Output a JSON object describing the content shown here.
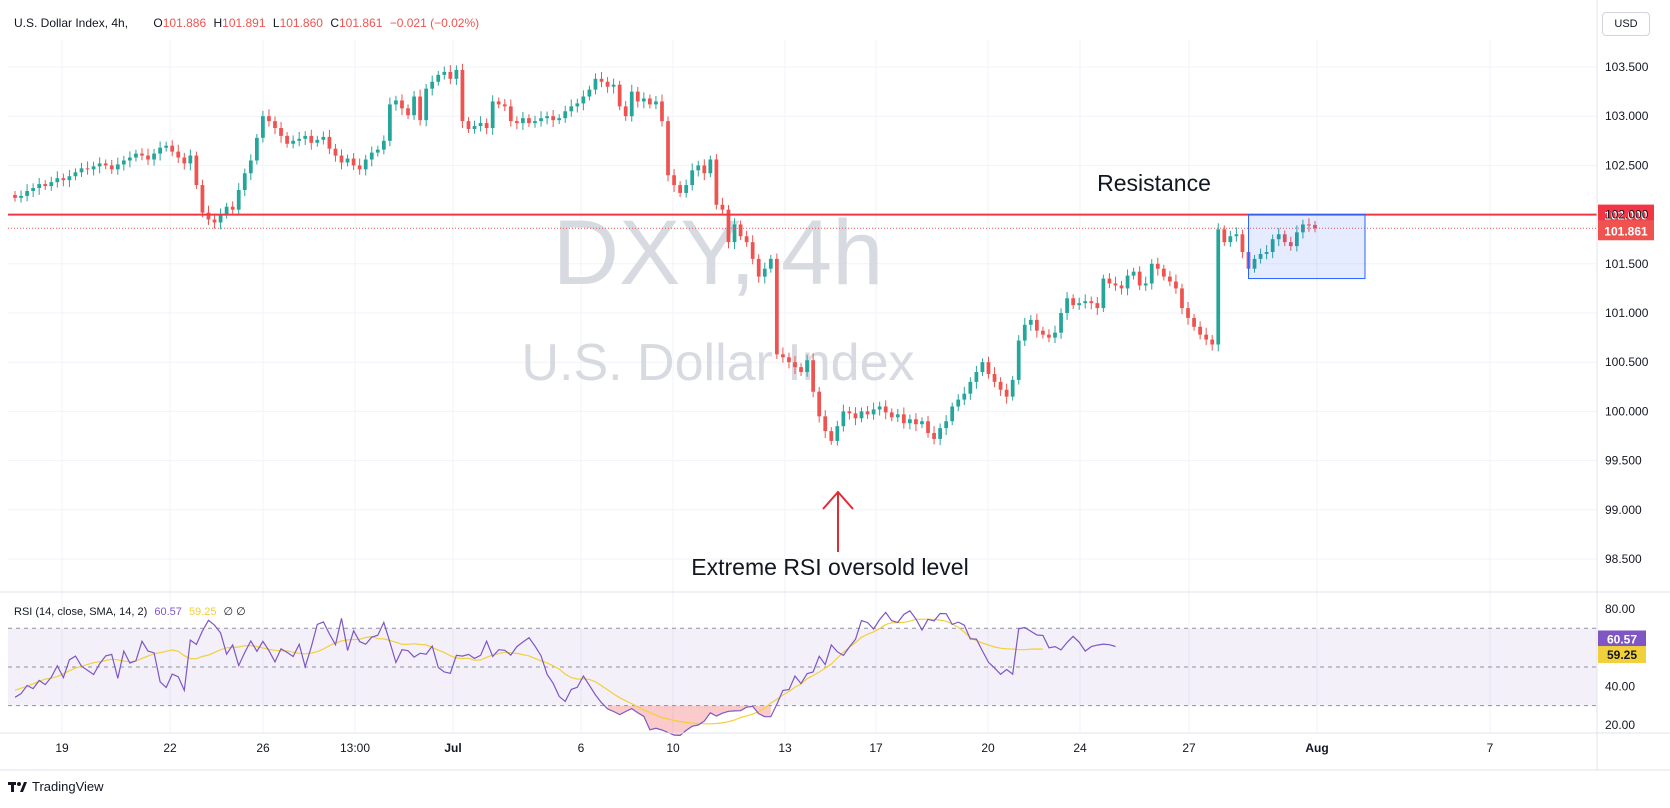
{
  "legend": {
    "title": "U.S. Dollar Index, 4h,",
    "open_label": "O",
    "open": "101.886",
    "high_label": "H",
    "high": "101.891",
    "low_label": "L",
    "low": "101.860",
    "close_label": "C",
    "close": "101.861",
    "change": "−0.021 (−0.02%)"
  },
  "rsi_legend": {
    "label": "RSI (14, close, SMA, 14, 2)",
    "rsi": "60.57",
    "sma": "59.25",
    "extra": "∅ ∅"
  },
  "currency": "USD",
  "watermark": {
    "symbol": "DXY, 4h",
    "name": "U.S. Dollar Index"
  },
  "annotations": {
    "resistance": "Resistance",
    "oversold": "Extreme RSI oversold level"
  },
  "brand": "TradingView",
  "colors": {
    "up": "#26a69a",
    "down": "#ef5350",
    "resistance": "#f23645",
    "rsi_line": "#7e57c2",
    "rsi_sma": "#f2d03b",
    "box_border": "#2962ff"
  },
  "chart_data": [
    {
      "type": "candlestick",
      "price_axis_labels": [
        "103.500",
        "103.000",
        "102.500",
        "102.000",
        "101.500",
        "101.000",
        "100.500",
        "100.000",
        "99.500",
        "99.000",
        "98.500"
      ],
      "price_axis_values": [
        103.5,
        103.0,
        102.5,
        102.0,
        101.5,
        101.0,
        100.5,
        100.0,
        99.5,
        99.0,
        98.5
      ],
      "time_axis_labels": [
        "19",
        "22",
        "26",
        "13:00",
        "Jul",
        "6",
        "10",
        "13",
        "17",
        "20",
        "24",
        "27",
        "Aug",
        "7"
      ],
      "resistance_level": 102.0,
      "resistance_label": "102.000",
      "last_price": 101.861,
      "last_price_label": "101.861",
      "range_box": {
        "price_top": 102.0,
        "price_bottom": 101.35
      },
      "closes": [
        102.17,
        102.19,
        102.24,
        102.27,
        102.31,
        102.29,
        102.33,
        102.37,
        102.35,
        102.39,
        102.43,
        102.47,
        102.46,
        102.49,
        102.52,
        102.5,
        102.46,
        102.51,
        102.55,
        102.58,
        102.62,
        102.6,
        102.56,
        102.62,
        102.68,
        102.7,
        102.64,
        102.58,
        102.52,
        102.6,
        102.3,
        102.02,
        101.95,
        101.92,
        102.0,
        102.08,
        102.05,
        102.25,
        102.42,
        102.55,
        102.78,
        103.0,
        102.95,
        102.88,
        102.8,
        102.72,
        102.75,
        102.77,
        102.8,
        102.73,
        102.76,
        102.79,
        102.67,
        102.6,
        102.53,
        102.57,
        102.5,
        102.46,
        102.56,
        102.63,
        102.66,
        102.75,
        103.12,
        103.16,
        103.08,
        103.01,
        103.2,
        102.96,
        103.28,
        103.35,
        103.42,
        103.45,
        103.38,
        103.47,
        102.95,
        102.87,
        102.9,
        102.93,
        102.88,
        103.15,
        103.12,
        103.1,
        102.95,
        102.93,
        102.98,
        102.93,
        102.95,
        102.98,
        103.0,
        102.96,
        102.98,
        103.05,
        103.1,
        103.13,
        103.2,
        103.27,
        103.38,
        103.35,
        103.3,
        103.32,
        103.1,
        103.0,
        103.25,
        103.15,
        103.18,
        103.12,
        103.15,
        102.95,
        102.4,
        102.3,
        102.22,
        102.3,
        102.45,
        102.5,
        102.42,
        102.56,
        102.1,
        102.05,
        101.72,
        101.9,
        101.78,
        101.72,
        101.55,
        101.37,
        101.45,
        101.55,
        100.58,
        100.55,
        100.5,
        100.45,
        100.4,
        100.52,
        100.2,
        99.95,
        99.8,
        99.7,
        99.85,
        100.0,
        99.98,
        99.93,
        100.0,
        99.97,
        100.02,
        100.05,
        99.99,
        99.94,
        99.97,
        99.88,
        99.92,
        99.87,
        99.9,
        99.78,
        99.72,
        99.83,
        99.9,
        100.05,
        100.12,
        100.18,
        100.3,
        100.4,
        100.5,
        100.38,
        100.3,
        100.22,
        100.15,
        100.32,
        100.72,
        100.88,
        100.93,
        100.82,
        100.78,
        100.75,
        100.8,
        101.0,
        101.15,
        101.08,
        101.1,
        101.12,
        101.1,
        101.05,
        101.35,
        101.3,
        101.28,
        101.25,
        101.38,
        101.42,
        101.28,
        101.3,
        101.5,
        101.45,
        101.37,
        101.32,
        101.25,
        101.05,
        100.95,
        100.86,
        100.78,
        100.73,
        100.68,
        101.85,
        101.72,
        101.78,
        101.8,
        101.62,
        101.45,
        101.55,
        101.6,
        101.62,
        101.75,
        101.8,
        101.72,
        101.68,
        101.82,
        101.9,
        101.895,
        101.861
      ],
      "rsi_axis_labels": [
        "80.00",
        "60.57",
        "59.25",
        "40.00",
        "20.00"
      ],
      "rsi_bands": {
        "upper": 70,
        "middle": 50,
        "lower": 30
      },
      "rsi": [
        34.3,
        36.2,
        40.4,
        38.8,
        43.0,
        40.9,
        44.7,
        50.6,
        44.5,
        53.7,
        55.6,
        50.4,
        48.2,
        46.1,
        51.7,
        55.7,
        56.5,
        44.1,
        58.2,
        52.0,
        53.2,
        63.3,
        58.2,
        57.3,
        42.3,
        39.4,
        46.3,
        44.9,
        37.9,
        63.9,
        61.6,
        68.6,
        74.1,
        71.6,
        67.6,
        56.6,
        61.4,
        50.7,
        57.5,
        63.4,
        58.1,
        63.2,
        58.4,
        52.6,
        59.4,
        57.5,
        55.4,
        61.7,
        50.1,
        60.4,
        72.0,
        73.3,
        67.1,
        61.5,
        75.1,
        58.5,
        68.7,
        63.1,
        61.7,
        65.4,
        66.4,
        73.0,
        62.8,
        52.3,
        58.9,
        58.4,
        55.1,
        57.1,
        56.6,
        60.8,
        49.7,
        47.4,
        46.7,
        56.0,
        55.6,
        56.5,
        54.4,
        56.0,
        63.3,
        55.4,
        58.9,
        58.6,
        56.1,
        60.5,
        62.9,
        65.1,
        60.8,
        55.8,
        46.2,
        41.6,
        34.8,
        32.2,
        38.4,
        39.5,
        45.3,
        40.5,
        35.5,
        31.5,
        28.3,
        27.0,
        25.4,
        27.0,
        28.5,
        26.3,
        24.5,
        17.5,
        18.3,
        17.4,
        16.1,
        14.8,
        14.6,
        17.2,
        19.4,
        20.0,
        22.0,
        26.3,
        24.6,
        26.1,
        27.1,
        27.3,
        27.4,
        29.2,
        29.6,
        25.9,
        24.3,
        24.3,
        30.8,
        37.9,
        38.3,
        45.3,
        41.4,
        46.5,
        47.4,
        55.5,
        51.2,
        61.4,
        57.9,
        55.9,
        60.3,
        64.3,
        74.0,
        72.9,
        69.6,
        74.5,
        78.2,
        73.9,
        73.0,
        77.1,
        79.0,
        74.8,
        69.1,
        74.6,
        73.8,
        77.6,
        77.5,
        72.0,
        73.2,
        71.6,
        64.5,
        64.4,
        58.3,
        52.4,
        49.5,
        46.2,
        48.7,
        46.3,
        69.7,
        70.4,
        68.5,
        66.5,
        66.3,
        59.9,
        60.5,
        58.8,
        62.7,
        65.8,
        62.8,
        58.2,
        60.5,
        61.3,
        61.8,
        61.5,
        60.57
      ],
      "rsi_sma": [
        38.0,
        39.0,
        40.0,
        41.3,
        42.6,
        43.7,
        44.2,
        45.0,
        46.5,
        48.0,
        49.5,
        50.3,
        51.3,
        52.2,
        52.7,
        53.3,
        54.0,
        53.7,
        53.0,
        52.7,
        53.1,
        54.4,
        55.6,
        56.8,
        57.4,
        58.1,
        58.8,
        58.1,
        55.8,
        54.3,
        54.2,
        55.4,
        56.2,
        57.5,
        58.9,
        59.9,
        60.1,
        60.3,
        61.0,
        61.1,
        60.5,
        59.8,
        59.1,
        58.6,
        58.3,
        58.3,
        57.6,
        57.0,
        56.8,
        57.2,
        57.9,
        59.3,
        61.0,
        62.4,
        63.4,
        64.0,
        64.2,
        64.3,
        65.2,
        65.7,
        64.6,
        64.5,
        63.7,
        62.8,
        61.7,
        61.7,
        62.0,
        61.6,
        61.4,
        60.0,
        58.7,
        57.4,
        55.8,
        54.7,
        54.3,
        54.5,
        53.5,
        53.6,
        55.0,
        56.1,
        56.9,
        57.6,
        57.3,
        57.0,
        56.4,
        55.7,
        54.4,
        53.2,
        52.1,
        50.6,
        48.9,
        46.3,
        44.5,
        43.7,
        43.9,
        43.5,
        42.3,
        40.3,
        38.2,
        36.0,
        34.1,
        32.5,
        31.0,
        29.4,
        27.8,
        26.4,
        25.1,
        23.9,
        23.1,
        22.4,
        21.8,
        21.3,
        21.0,
        20.8,
        20.6,
        20.6,
        20.8,
        21.1,
        21.7,
        22.6,
        23.9,
        24.7,
        25.6,
        27.0,
        28.8,
        31.3,
        33.3,
        35.5,
        37.3,
        39.6,
        41.2,
        43.9,
        45.6,
        47.4,
        49.4,
        51.5,
        54.6,
        57.6,
        60.2,
        62.6,
        65.3,
        66.9,
        68.1,
        70.0,
        71.9,
        72.8,
        72.9,
        73.0,
        73.7,
        74.6,
        74.7,
        74.6,
        74.6,
        74.2,
        73.6,
        72.2,
        70.5,
        68.0,
        65.1,
        63.6,
        62.4,
        61.3,
        60.3,
        59.7,
        59.4,
        59.3,
        58.9,
        58.9,
        59.2,
        59.3,
        59.25
      ]
    }
  ]
}
